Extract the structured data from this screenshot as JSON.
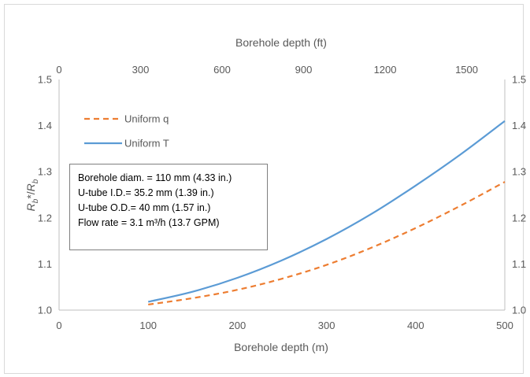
{
  "chart_data": {
    "type": "line",
    "xlabel": "Borehole depth (m)",
    "x2label": "Borehole depth (ft)",
    "ylabel_main": "R",
    "ylabel_sub": "b",
    "ylabel_star": "*/",
    "xlim": [
      0,
      500
    ],
    "x_ticks": [
      "0",
      "100",
      "200",
      "300",
      "400",
      "500"
    ],
    "x2_ticks": [
      "0",
      "300",
      "600",
      "900",
      "1200",
      "1500"
    ],
    "x2_tick_values_ft": [
      0,
      300,
      600,
      900,
      1200,
      1500
    ],
    "ylim": [
      1.0,
      1.5
    ],
    "y_ticks": [
      "1.0",
      "1.1",
      "1.2",
      "1.3",
      "1.4",
      "1.5"
    ],
    "y_ticks_right": [
      "1.0",
      "1.1",
      "1.2",
      "1.3",
      "1.4",
      "1.5"
    ],
    "grid": false,
    "legend": "top-left",
    "series": [
      {
        "name": "Uniform q",
        "style": "dashed",
        "color": "#ed7d31",
        "x": [
          100,
          150,
          200,
          250,
          300,
          350,
          400,
          450,
          500
        ],
        "y": [
          1.012,
          1.026,
          1.044,
          1.068,
          1.098,
          1.135,
          1.178,
          1.226,
          1.278
        ]
      },
      {
        "name": "Uniform T",
        "style": "solid",
        "color": "#5b9bd5",
        "x": [
          100,
          150,
          200,
          250,
          300,
          350,
          400,
          450,
          500
        ],
        "y": [
          1.018,
          1.04,
          1.07,
          1.108,
          1.154,
          1.208,
          1.27,
          1.337,
          1.41
        ]
      }
    ],
    "annotation_lines": [
      "Borehole diam. =  110 mm (4.33 in.)",
      "U-tube I.D.= 35.2 mm (1.39 in.)",
      "U-tube O.D.=  40 mm (1.57 in.)",
      "Flow rate = 3.1 m³/h (13.7 GPM)"
    ]
  }
}
